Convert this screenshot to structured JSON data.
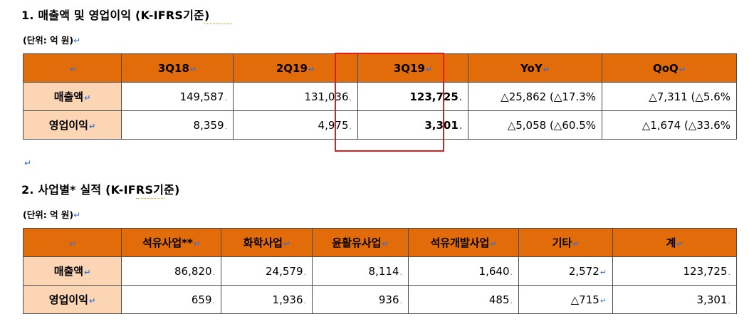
{
  "section1": {
    "title": "1. 매출액 및 영업이익 (K-IFRS기준)",
    "unit": "(단위: 억 원)",
    "headers": [
      "",
      "3Q18",
      "2Q19",
      "3Q19",
      "YoY",
      "QoQ"
    ],
    "rows": [
      {
        "label": "매출액",
        "cells": [
          "149,587",
          "131,036",
          "123,725",
          "△25,862 (△17.3%",
          "△7,311 (△5.6%"
        ]
      },
      {
        "label": "영업이익",
        "cells": [
          "8,359",
          "4,975",
          "3,301",
          "△5,058 (△60.5%",
          "△1,674 (△33.6%"
        ]
      }
    ]
  },
  "section2": {
    "title": "2. 사업별* 실적 (K-IFRS기준)",
    "unit": "(단위: 억 원)",
    "headers": [
      "",
      "석유사업**",
      "화학사업",
      "윤활유사업",
      "석유개발사업",
      "기타",
      "계"
    ],
    "rows": [
      {
        "label": "매출액",
        "cells": [
          "86,820",
          "24,579",
          "8,114",
          "1,640",
          "2,572",
          "123,725"
        ]
      },
      {
        "label": "영업이익",
        "cells": [
          "659",
          "1,936",
          "936",
          "485",
          "△715",
          "3,301"
        ]
      }
    ]
  },
  "symbols": {
    "return_mark": "↵",
    "para_mark": "↵",
    "cell_mark": "↵"
  },
  "colors": {
    "header_bg": "#e26b0a",
    "row_header_bg": "#fcd5b4",
    "highlight_border": "#e11c1c",
    "mark_color": "#3b6fd1"
  }
}
